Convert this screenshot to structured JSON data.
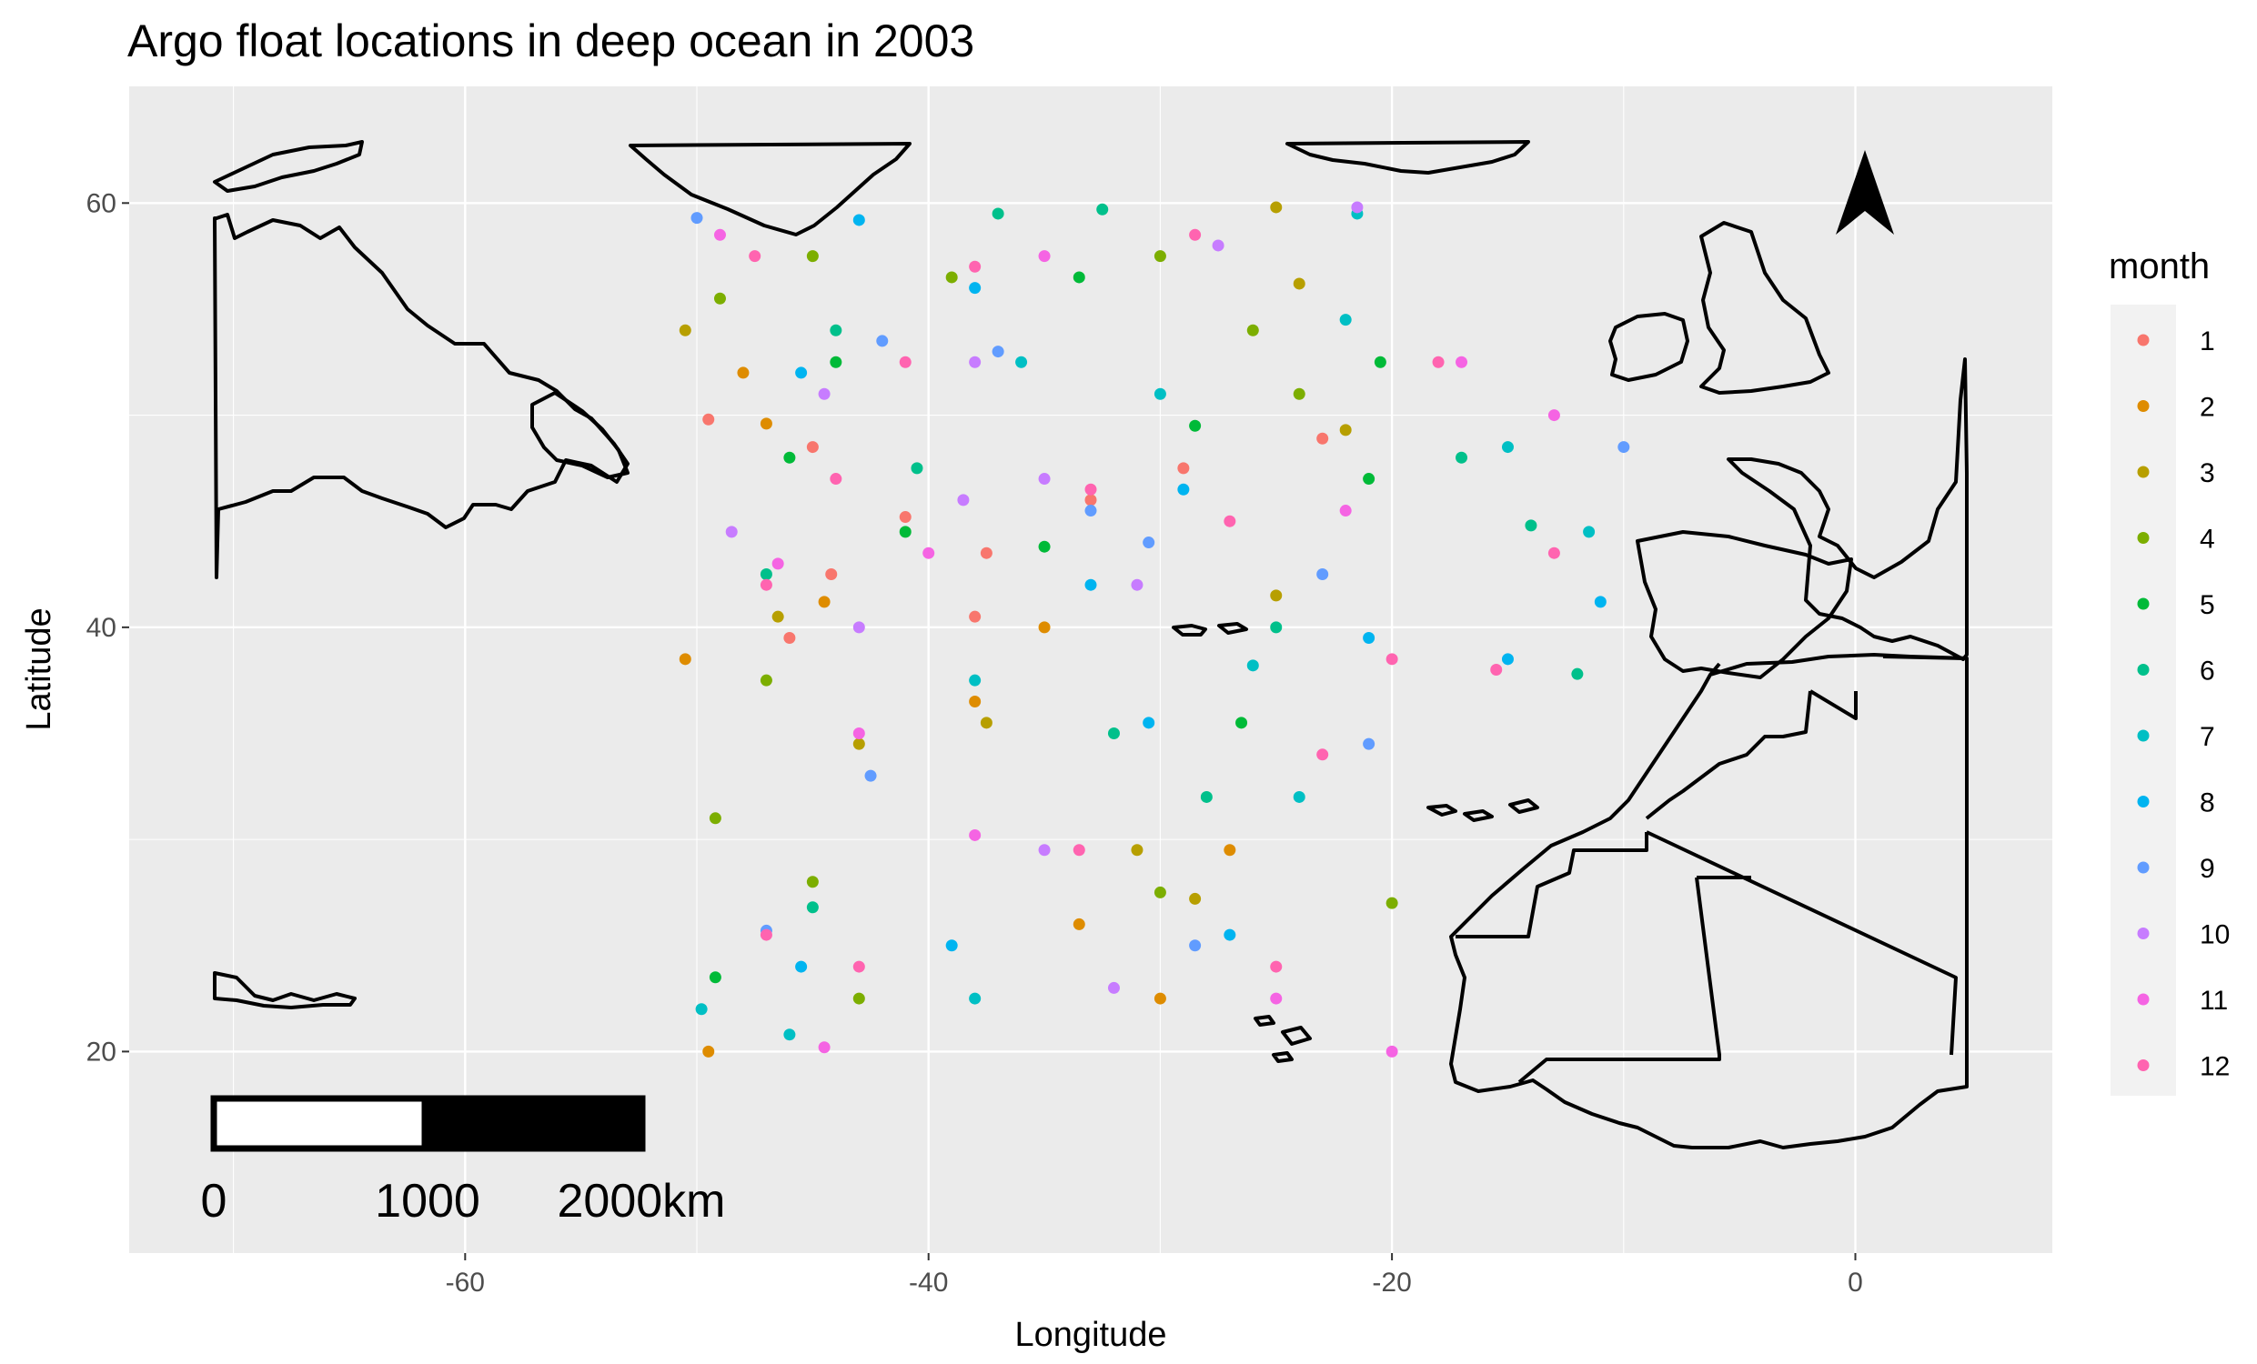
{
  "chart_data": {
    "type": "scatter",
    "title": "Argo float locations in deep ocean in 2003",
    "xlabel": "Longitude",
    "ylabel": "Latitude",
    "xlim": [
      -74.5,
      8.5
    ],
    "ylim": [
      10.5,
      65.5
    ],
    "x_ticks": [
      -60,
      -40,
      -20,
      0
    ],
    "x_tick_labels": [
      "-60",
      "-40",
      "-20",
      "0"
    ],
    "y_ticks": [
      20,
      40,
      60
    ],
    "y_tick_labels": [
      "20",
      "40",
      "60"
    ],
    "grid": true,
    "legend": {
      "title": "month",
      "position": "right",
      "entries": [
        "1",
        "2",
        "3",
        "4",
        "5",
        "6",
        "7",
        "8",
        "9",
        "10",
        "11",
        "12"
      ],
      "colors": [
        "#F8766D",
        "#DE8C00",
        "#B79F00",
        "#7CAE00",
        "#00BA38",
        "#00C08B",
        "#00BFC4",
        "#00B4F0",
        "#619CFF",
        "#C77CFF",
        "#F564E3",
        "#FF64B0"
      ]
    },
    "scale_bar": {
      "labels": [
        "0",
        "1000",
        "2000km"
      ]
    },
    "north_arrow": "north-arrow-icon",
    "float_tracks": [
      {
        "month": 1,
        "points": [
          [
            -45,
            48.5
          ],
          [
            -41,
            45.2
          ],
          [
            -37.5,
            43.5
          ],
          [
            -33,
            46
          ],
          [
            -29,
            47.5
          ],
          [
            -23,
            48.9
          ],
          [
            -49.5,
            49.8
          ],
          [
            -46,
            39.5
          ],
          [
            -44.2,
            42.5
          ],
          [
            -38,
            40.5
          ]
        ]
      },
      {
        "month": 2,
        "points": [
          [
            -49.5,
            20
          ],
          [
            -47,
            49.6
          ],
          [
            -38,
            36.5
          ],
          [
            -35,
            40
          ],
          [
            -33.5,
            26
          ],
          [
            -48,
            52
          ],
          [
            -44.5,
            41.2
          ],
          [
            -27,
            29.5
          ],
          [
            -30,
            22.5
          ],
          [
            -50.5,
            38.5
          ]
        ]
      },
      {
        "month": 3,
        "points": [
          [
            -25,
            59.8
          ],
          [
            -24,
            56.2
          ],
          [
            -22,
            49.3
          ],
          [
            -31,
            29.5
          ],
          [
            -28.5,
            27.2
          ],
          [
            -25,
            41.5
          ],
          [
            -43,
            34.5
          ],
          [
            -46.5,
            40.5
          ],
          [
            -37.5,
            35.5
          ],
          [
            -50.5,
            54
          ]
        ]
      },
      {
        "month": 4,
        "points": [
          [
            -49,
            55.5
          ],
          [
            -45,
            57.5
          ],
          [
            -39,
            56.5
          ],
          [
            -26,
            54
          ],
          [
            -30,
            57.5
          ],
          [
            -24,
            51
          ],
          [
            -45,
            28
          ],
          [
            -43,
            22.5
          ],
          [
            -30,
            27.5
          ],
          [
            -20,
            27
          ],
          [
            -49.2,
            31
          ],
          [
            -47,
            37.5
          ]
        ]
      },
      {
        "month": 5,
        "points": [
          [
            -46,
            48
          ],
          [
            -41,
            44.5
          ],
          [
            -35,
            43.8
          ],
          [
            -28.5,
            49.5
          ],
          [
            -21,
            47
          ],
          [
            -49.2,
            23.5
          ],
          [
            -26.5,
            35.5
          ],
          [
            -44,
            52.5
          ],
          [
            -33.5,
            56.5
          ],
          [
            -20.5,
            52.5
          ]
        ]
      },
      {
        "month": 6,
        "points": [
          [
            -37,
            59.5
          ],
          [
            -32.5,
            59.7
          ],
          [
            -44,
            54
          ],
          [
            -47,
            42.5
          ],
          [
            -40.5,
            47.5
          ],
          [
            -32,
            35
          ],
          [
            -25,
            40
          ],
          [
            -17,
            48
          ],
          [
            -14,
            44.8
          ],
          [
            -12,
            37.8
          ],
          [
            -45,
            26.8
          ],
          [
            -28,
            32
          ]
        ]
      },
      {
        "month": 7,
        "points": [
          [
            -21.5,
            59.5
          ],
          [
            -22,
            54.5
          ],
          [
            -26,
            38.2
          ],
          [
            -36,
            52.5
          ],
          [
            -38,
            37.5
          ],
          [
            -30,
            51
          ],
          [
            -15,
            48.5
          ],
          [
            -11.5,
            44.5
          ],
          [
            -49.8,
            22
          ],
          [
            -38,
            22.5
          ],
          [
            -46,
            20.8
          ],
          [
            -24,
            32
          ]
        ]
      },
      {
        "month": 8,
        "points": [
          [
            -43,
            59.2
          ],
          [
            -38,
            56
          ],
          [
            -45.5,
            52
          ],
          [
            -33,
            42
          ],
          [
            -29,
            46.5
          ],
          [
            -21,
            39.5
          ],
          [
            -15,
            38.5
          ],
          [
            -11,
            41.2
          ],
          [
            -30.5,
            35.5
          ],
          [
            -27,
            25.5
          ],
          [
            -39,
            25
          ],
          [
            -45.5,
            24
          ]
        ]
      },
      {
        "month": 9,
        "points": [
          [
            -50,
            59.3
          ],
          [
            -42,
            53.5
          ],
          [
            -37,
            53
          ],
          [
            -33,
            45.5
          ],
          [
            -30.5,
            44
          ],
          [
            -23,
            42.5
          ],
          [
            -10,
            48.5
          ],
          [
            -21,
            34.5
          ],
          [
            -28.5,
            25
          ],
          [
            -47,
            25.7
          ],
          [
            -42.5,
            33
          ]
        ]
      },
      {
        "month": 10,
        "points": [
          [
            -21.5,
            59.8
          ],
          [
            -27.5,
            58
          ],
          [
            -44.5,
            51
          ],
          [
            -38.5,
            46
          ],
          [
            -35,
            47
          ],
          [
            -43,
            40
          ],
          [
            -31,
            42
          ],
          [
            -35,
            29.5
          ],
          [
            -32,
            23
          ],
          [
            -48.5,
            44.5
          ],
          [
            -38,
            52.5
          ]
        ]
      },
      {
        "month": 11,
        "points": [
          [
            -49,
            58.5
          ],
          [
            -35,
            57.5
          ],
          [
            -40,
            43.5
          ],
          [
            -46.5,
            43
          ],
          [
            -22,
            45.5
          ],
          [
            -17,
            52.5
          ],
          [
            -13,
            50
          ],
          [
            -25,
            22.5
          ],
          [
            -20,
            20
          ],
          [
            -43,
            35
          ],
          [
            -38,
            30.2
          ],
          [
            -44.5,
            20.2
          ]
        ]
      },
      {
        "month": 12,
        "points": [
          [
            -47.5,
            57.5
          ],
          [
            -38,
            57
          ],
          [
            -41,
            52.5
          ],
          [
            -28.5,
            58.5
          ],
          [
            -44,
            47
          ],
          [
            -47,
            42
          ],
          [
            -33,
            46.5
          ],
          [
            -27,
            45
          ],
          [
            -18,
            52.5
          ],
          [
            -20,
            38.5
          ],
          [
            -15.5,
            38
          ],
          [
            -13,
            43.5
          ],
          [
            -25,
            24
          ],
          [
            -47,
            25.5
          ],
          [
            -43,
            24
          ],
          [
            -33.5,
            29.5
          ],
          [
            -23,
            34
          ]
        ]
      }
    ]
  }
}
